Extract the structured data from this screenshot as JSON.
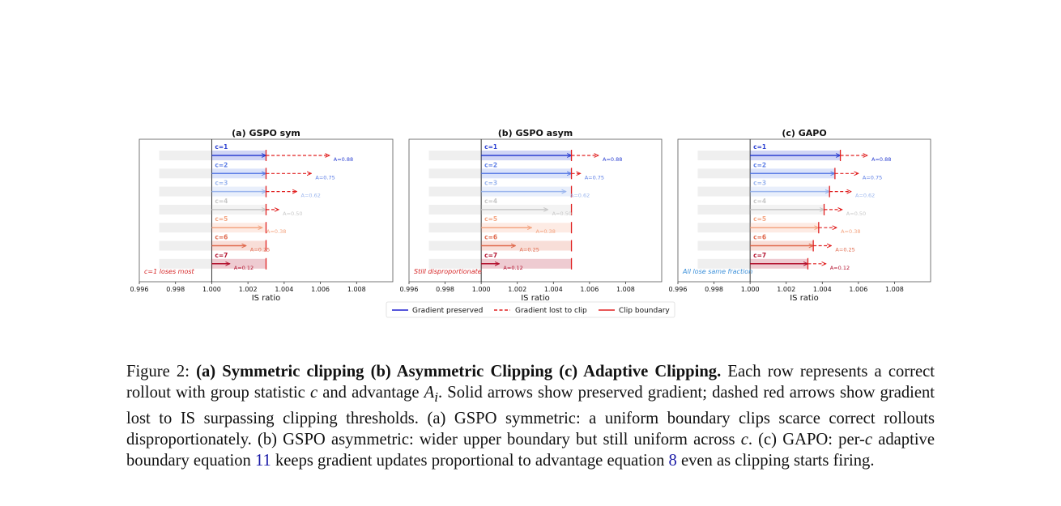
{
  "chart_data": [
    {
      "type": "bar",
      "title": "(a) GSPO sym",
      "xlabel": "IS ratio",
      "xlim": [
        0.996,
        1.01
      ],
      "xticks": [
        "0.996",
        "0.998",
        "1.000",
        "1.002",
        "1.004",
        "1.006",
        "1.008"
      ],
      "rows": [
        {
          "label": "c=1",
          "advantage_label": "A=0.88",
          "preserved_end": 1.003,
          "intended_end": 1.0065,
          "clip": 1.003
        },
        {
          "label": "c=2",
          "advantage_label": "A=0.75",
          "preserved_end": 1.003,
          "intended_end": 1.0055,
          "clip": 1.003
        },
        {
          "label": "c=3",
          "advantage_label": "A=0.62",
          "preserved_end": 1.003,
          "intended_end": 1.0047,
          "clip": 1.003
        },
        {
          "label": "c=4",
          "advantage_label": "A=0.50",
          "preserved_end": 1.003,
          "intended_end": 1.0037,
          "clip": 1.003
        },
        {
          "label": "c=5",
          "advantage_label": "A=0.38",
          "preserved_end": 1.0028,
          "intended_end": 1.0028,
          "clip": 1.003
        },
        {
          "label": "c=6",
          "advantage_label": "A=0.25",
          "preserved_end": 1.0019,
          "intended_end": 1.0019,
          "clip": 1.003
        },
        {
          "label": "c=7",
          "advantage_label": "A=0.12",
          "preserved_end": 1.001,
          "intended_end": 1.001,
          "clip": 1.003
        }
      ],
      "annotation": "c=1 loses most",
      "annotation_color": "#d62728"
    },
    {
      "type": "bar",
      "title": "(b) GSPO asym",
      "xlabel": "IS ratio",
      "xlim": [
        0.996,
        1.01
      ],
      "xticks": [
        "0.996",
        "0.998",
        "1.000",
        "1.002",
        "1.004",
        "1.006",
        "1.008"
      ],
      "rows": [
        {
          "label": "c=1",
          "advantage_label": "A=0.88",
          "preserved_end": 1.005,
          "intended_end": 1.0065,
          "clip": 1.005
        },
        {
          "label": "c=2",
          "advantage_label": "A=0.75",
          "preserved_end": 1.005,
          "intended_end": 1.0055,
          "clip": 1.005
        },
        {
          "label": "c=3",
          "advantage_label": "A=0.62",
          "preserved_end": 1.0047,
          "intended_end": 1.0047,
          "clip": 1.005
        },
        {
          "label": "c=4",
          "advantage_label": "A=0.50",
          "preserved_end": 1.0037,
          "intended_end": 1.0037,
          "clip": 1.005
        },
        {
          "label": "c=5",
          "advantage_label": "A=0.38",
          "preserved_end": 1.0028,
          "intended_end": 1.0028,
          "clip": 1.005
        },
        {
          "label": "c=6",
          "advantage_label": "A=0.25",
          "preserved_end": 1.0019,
          "intended_end": 1.0019,
          "clip": 1.005
        },
        {
          "label": "c=7",
          "advantage_label": "A=0.12",
          "preserved_end": 1.001,
          "intended_end": 1.001,
          "clip": 1.005
        }
      ],
      "annotation": "Still disproportionate",
      "annotation_color": "#d62728"
    },
    {
      "type": "bar",
      "title": "(c) GAPO",
      "xlabel": "IS ratio",
      "xlim": [
        0.996,
        1.01
      ],
      "xticks": [
        "0.996",
        "0.998",
        "1.000",
        "1.002",
        "1.004",
        "1.006",
        "1.008"
      ],
      "rows": [
        {
          "label": "c=1",
          "advantage_label": "A=0.88",
          "preserved_end": 1.005,
          "intended_end": 1.0065,
          "clip": 1.005
        },
        {
          "label": "c=2",
          "advantage_label": "A=0.75",
          "preserved_end": 1.0047,
          "intended_end": 1.006,
          "clip": 1.0047
        },
        {
          "label": "c=3",
          "advantage_label": "A=0.62",
          "preserved_end": 1.0044,
          "intended_end": 1.0056,
          "clip": 1.0044
        },
        {
          "label": "c=4",
          "advantage_label": "A=0.50",
          "preserved_end": 1.0041,
          "intended_end": 1.0051,
          "clip": 1.0041
        },
        {
          "label": "c=5",
          "advantage_label": "A=0.38",
          "preserved_end": 1.0038,
          "intended_end": 1.0048,
          "clip": 1.0038
        },
        {
          "label": "c=6",
          "advantage_label": "A=0.25",
          "preserved_end": 1.0035,
          "intended_end": 1.0045,
          "clip": 1.0035
        },
        {
          "label": "c=7",
          "advantage_label": "A=0.12",
          "preserved_end": 1.0032,
          "intended_end": 1.0042,
          "clip": 1.0032
        }
      ],
      "annotation": "All lose same fraction",
      "annotation_color": "#3a8fd9"
    }
  ],
  "row_colors": [
    "#2a3fd1",
    "#5c7ee6",
    "#9bb6ee",
    "#c8c8c8",
    "#f4a582",
    "#e0694d",
    "#b3112e"
  ],
  "legend": {
    "preserved": "Gradient preserved",
    "lost": "Gradient lost to clip",
    "boundary": "Clip boundary",
    "preserved_color": "#1f1fcf",
    "lost_color": "#e02020",
    "boundary_color": "#e02020"
  },
  "caption": {
    "figure": "Figure 2:",
    "bold": "(a) Symmetric clipping (b) Asymmetric Clipping (c) Adaptive Clipping.",
    "t1": "Each row represents a correct rollout with group statistic",
    "var_c": "c",
    "t2": "and advantage",
    "var_a": "A",
    "var_a_sub": "i",
    "t3": ". Solid arrows show preserved gradient; dashed red arrows show gradient lost to IS surpassing clipping thresholds. (a) GSPO symmetric: a uniform boundary clips scarce correct rollouts disproportionately. (b) GSPO asymmetric: wider upper boundary but still uniform across",
    "t4": ". (c) GAPO: per-",
    "t5": "adaptive boundary equation",
    "ref1": "11",
    "t6": "keeps gradient updates proportional to advantage equation",
    "ref2": "8",
    "t7": "even as clipping starts firing."
  }
}
